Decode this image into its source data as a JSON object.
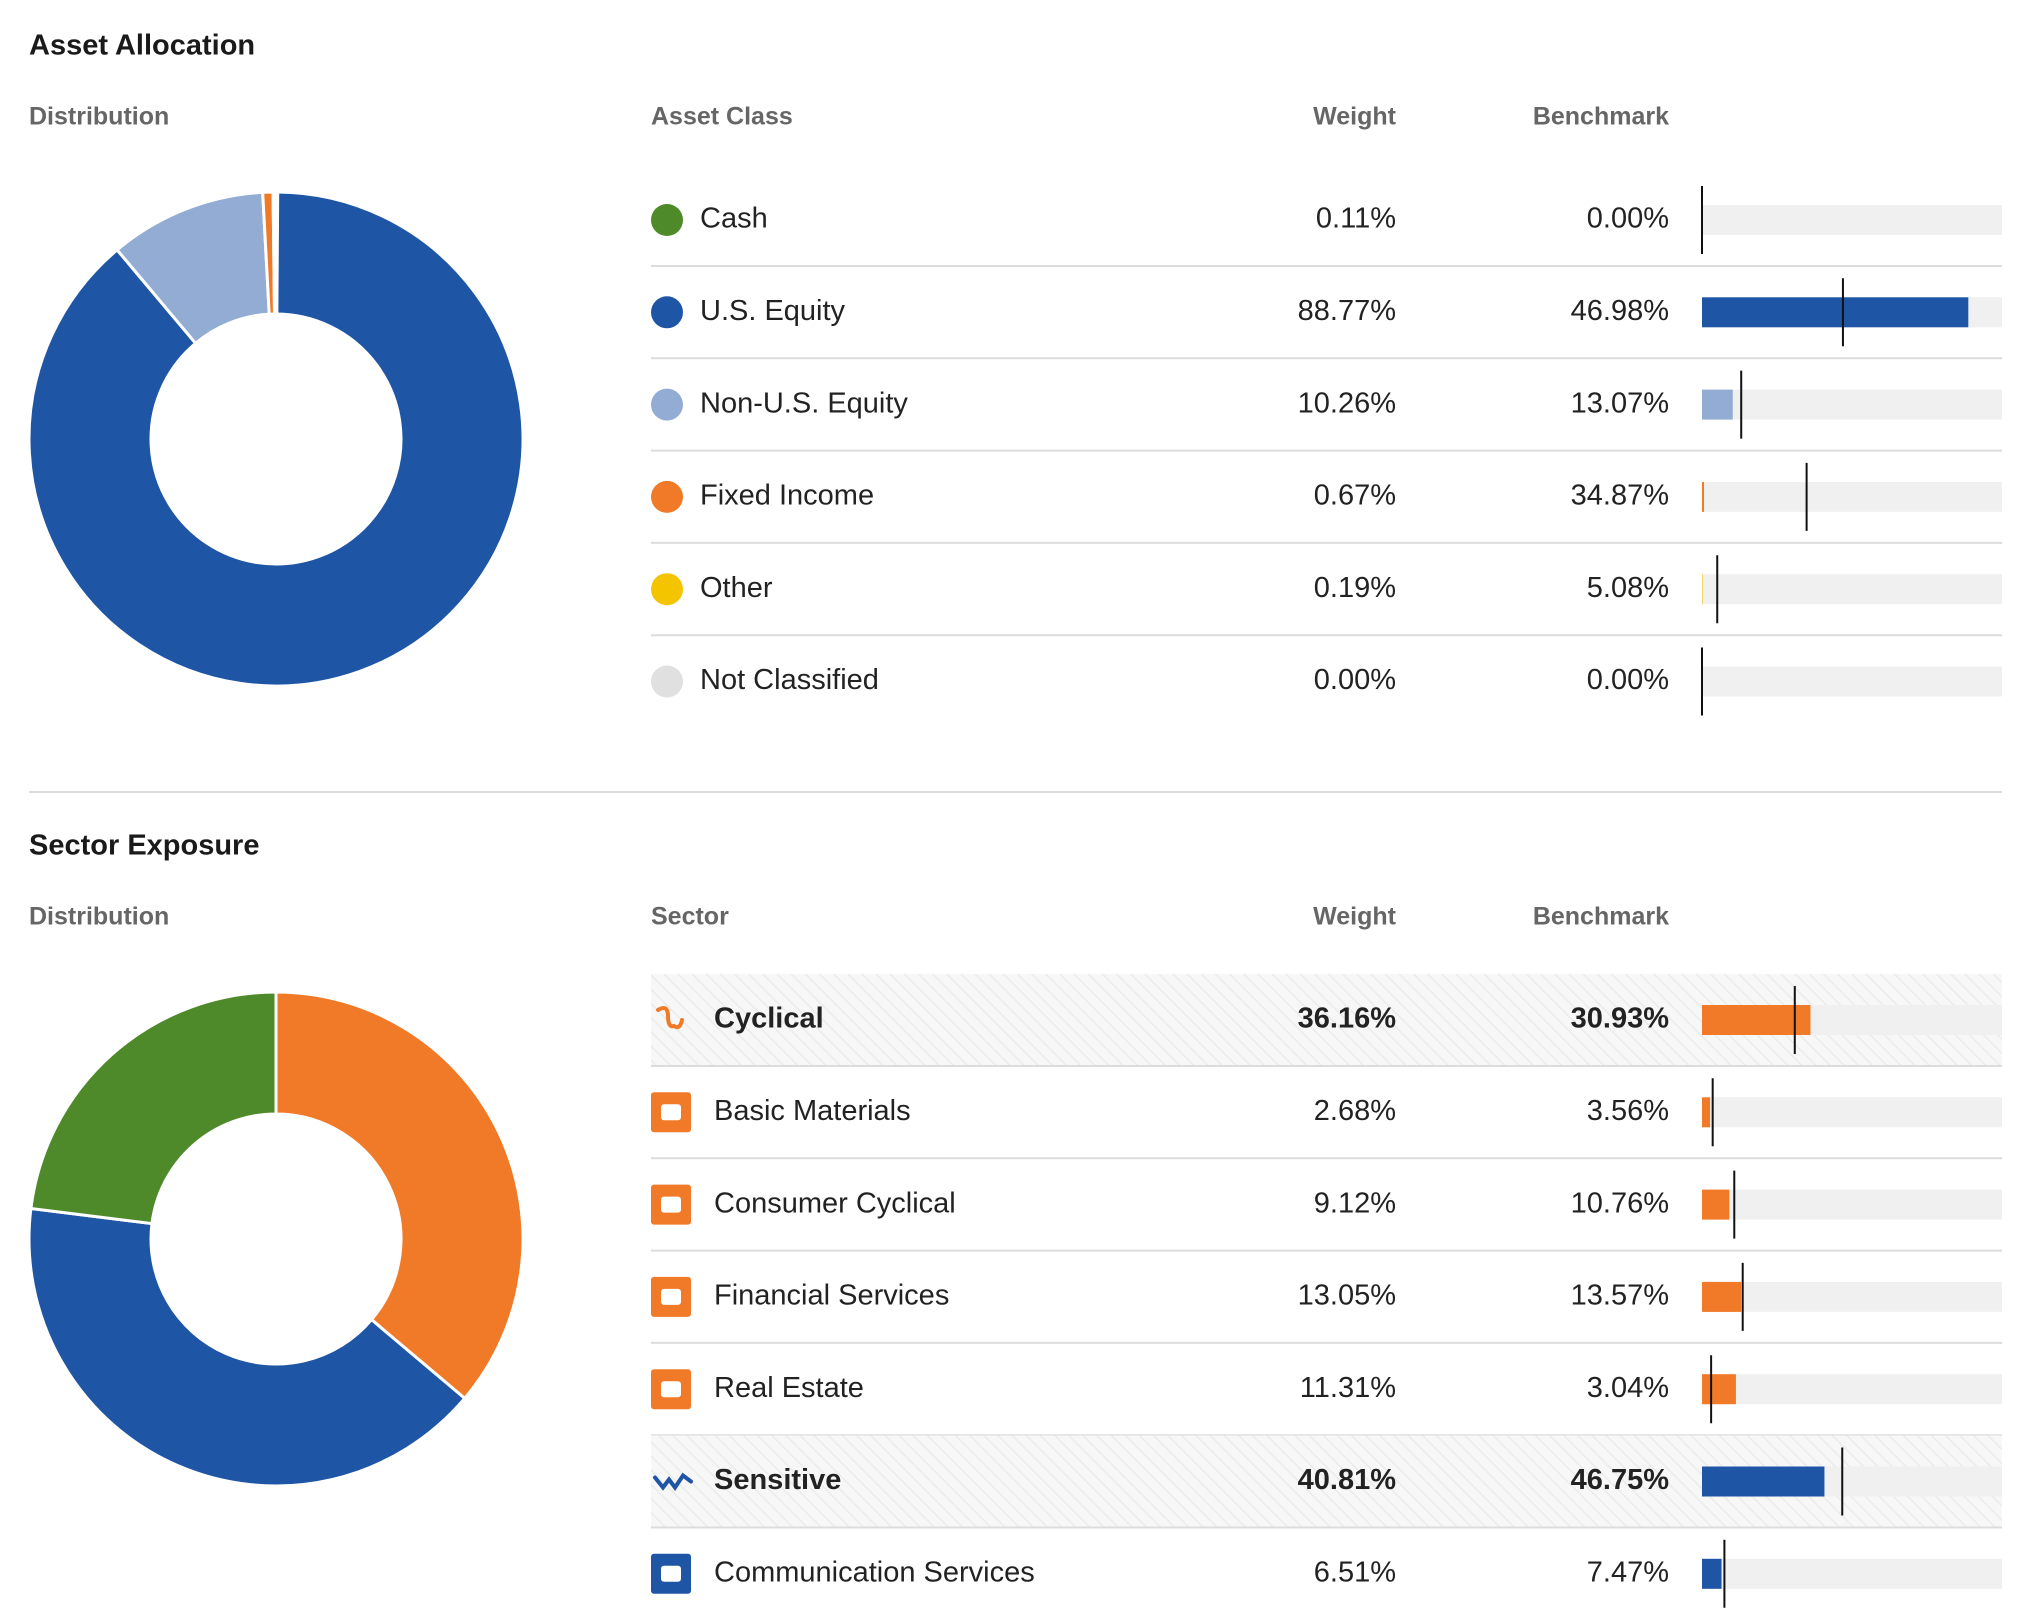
{
  "asset": {
    "title": "Asset Allocation",
    "distribution_label": "Distribution",
    "columns": [
      "Asset Class",
      "Weight",
      "Benchmark"
    ],
    "rows": [
      {
        "name": "Cash",
        "color": "#4e8a2a",
        "weight": {
          "value": 0.11,
          "label": "0.11%"
        },
        "benchmark": {
          "value": 0.0,
          "label": "0.00%"
        }
      },
      {
        "name": "U.S. Equity",
        "color": "#1f55a5",
        "weight": {
          "value": 88.77,
          "label": "88.77%"
        },
        "benchmark": {
          "value": 46.98,
          "label": "46.98%"
        }
      },
      {
        "name": "Non-U.S. Equity",
        "color": "#92acd4",
        "weight": {
          "value": 10.26,
          "label": "10.26%"
        },
        "benchmark": {
          "value": 13.07,
          "label": "13.07%"
        }
      },
      {
        "name": "Fixed Income",
        "color": "#f07a28",
        "weight": {
          "value": 0.67,
          "label": "0.67%"
        },
        "benchmark": {
          "value": 34.87,
          "label": "34.87%"
        }
      },
      {
        "name": "Other",
        "color": "#f5c400",
        "weight": {
          "value": 0.19,
          "label": "0.19%"
        },
        "benchmark": {
          "value": 5.08,
          "label": "5.08%"
        }
      },
      {
        "name": "Not Classified",
        "color": "#e0e0e0",
        "weight": {
          "value": 0.0,
          "label": "0.00%"
        },
        "benchmark": {
          "value": 0.0,
          "label": "0.00%"
        }
      }
    ]
  },
  "sector": {
    "title": "Sector Exposure",
    "distribution_label": "Distribution",
    "columns": [
      "Sector",
      "Weight",
      "Benchmark"
    ],
    "rows": [
      {
        "name": "Cyclical",
        "bold": true,
        "color": "#f07a28",
        "weight": {
          "value": 36.16,
          "label": "36.16%"
        },
        "benchmark": {
          "value": 30.93,
          "label": "30.93%"
        }
      },
      {
        "name": "Basic Materials",
        "color": "#f07a28",
        "weight": {
          "value": 2.68,
          "label": "2.68%"
        },
        "benchmark": {
          "value": 3.56,
          "label": "3.56%"
        }
      },
      {
        "name": "Consumer Cyclical",
        "color": "#f07a28",
        "weight": {
          "value": 9.12,
          "label": "9.12%"
        },
        "benchmark": {
          "value": 10.76,
          "label": "10.76%"
        }
      },
      {
        "name": "Financial Services",
        "color": "#f07a28",
        "weight": {
          "value": 13.05,
          "label": "13.05%"
        },
        "benchmark": {
          "value": 13.57,
          "label": "13.57%"
        }
      },
      {
        "name": "Real Estate",
        "color": "#f07a28",
        "weight": {
          "value": 11.31,
          "label": "11.31%"
        },
        "benchmark": {
          "value": 3.04,
          "label": "3.04%"
        }
      },
      {
        "name": "Sensitive",
        "bold": true,
        "color": "#1f55a5",
        "weight": {
          "value": 40.81,
          "label": "40.81%"
        },
        "benchmark": {
          "value": 46.75,
          "label": "46.75%"
        }
      },
      {
        "name": "Communication Services",
        "color": "#1f55a5",
        "weight": {
          "value": 6.51,
          "label": "6.51%"
        },
        "benchmark": {
          "value": 7.47,
          "label": "7.47%"
        }
      }
    ],
    "unlisted_slice": {
      "value": 23.03,
      "color": "#4e8a2a"
    }
  }
}
